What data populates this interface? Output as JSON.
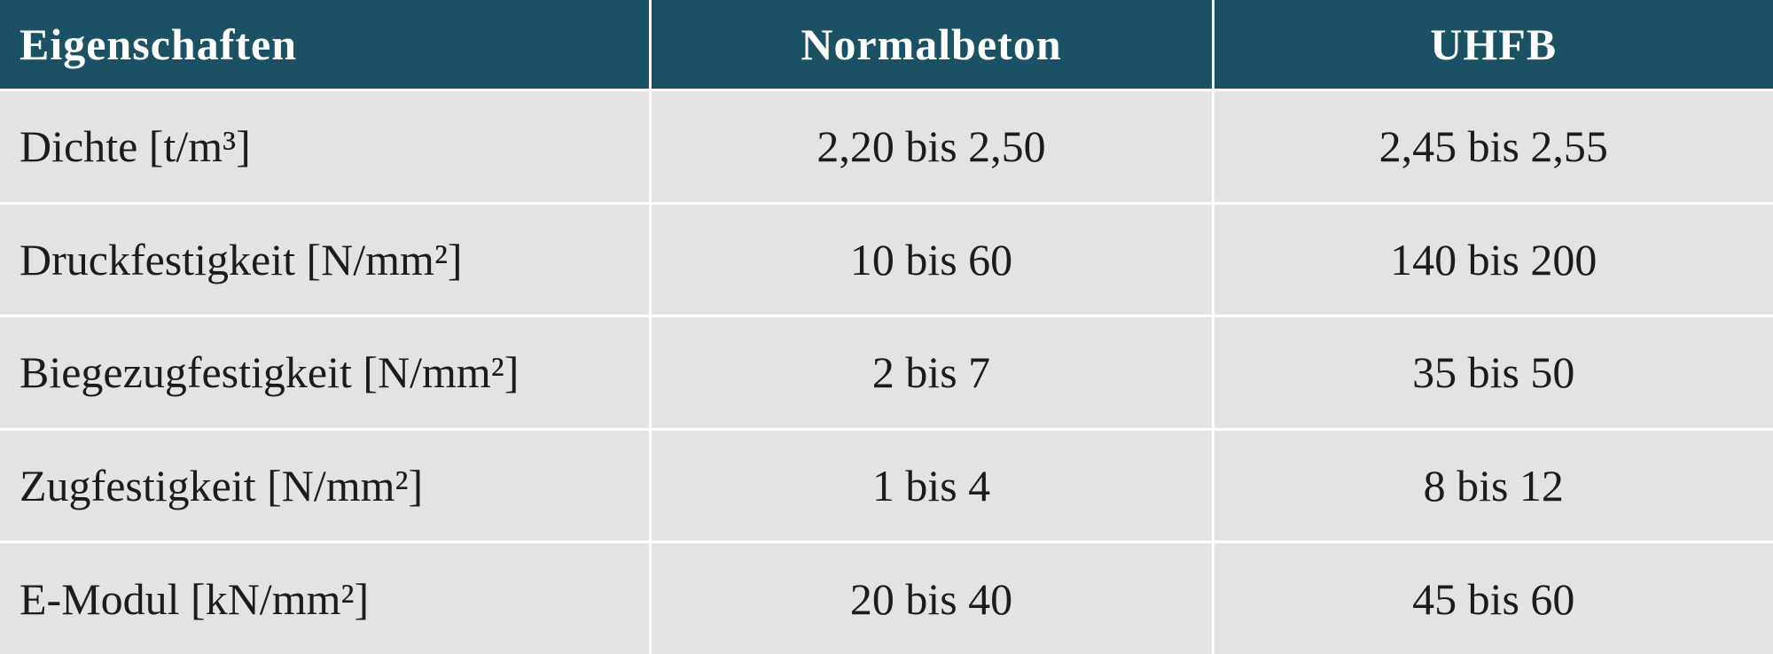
{
  "table": {
    "header": [
      "Eigenschaften",
      "Normalbeton",
      "UHFB"
    ],
    "rows": [
      [
        "Dichte [t/m³]",
        "2,20 bis 2,50",
        "2,45 bis 2,55"
      ],
      [
        "Druckfestigkeit [N/mm²]",
        "10 bis 60",
        "140 bis 200"
      ],
      [
        "Biegezugfestigkeit [N/mm²]",
        "2 bis 7",
        "35 bis 50"
      ],
      [
        "Zugfestigkeit [N/mm²]",
        "1 bis 4",
        "8 bis 12"
      ],
      [
        "E-Modul [kN/mm²]",
        "20 bis 40",
        "45 bis 60"
      ]
    ]
  }
}
